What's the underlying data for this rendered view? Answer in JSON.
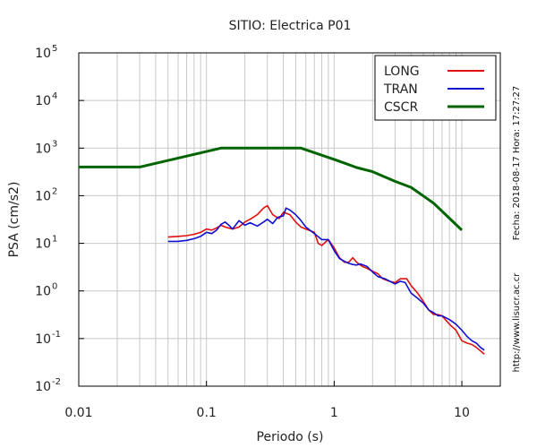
{
  "chart_data": {
    "type": "line",
    "title": "SITIO: Electrica P01",
    "xlabel": "Periodo (s)",
    "ylabel": "PSA (cm/s2)",
    "x_scale": "log",
    "y_scale": "log",
    "xlim": [
      0.01,
      20
    ],
    "ylim": [
      0.01,
      100000
    ],
    "grid": true,
    "legend_position": "top-right",
    "x_ticks": [
      {
        "value": 0.01,
        "label": "0.01"
      },
      {
        "value": 0.1,
        "label": "0.1"
      },
      {
        "value": 1,
        "label": "1"
      },
      {
        "value": 10,
        "label": "10"
      }
    ],
    "y_ticks": [
      {
        "value": 0.01,
        "base": "10",
        "exp": "-2"
      },
      {
        "value": 0.1,
        "base": "10",
        "exp": "-1"
      },
      {
        "value": 1,
        "base": "10",
        "exp": "0"
      },
      {
        "value": 10,
        "base": "10",
        "exp": "1"
      },
      {
        "value": 100,
        "base": "10",
        "exp": "2"
      },
      {
        "value": 1000,
        "base": "10",
        "exp": "3"
      },
      {
        "value": 10000,
        "base": "10",
        "exp": "4"
      },
      {
        "value": 100000,
        "base": "10",
        "exp": "5"
      }
    ],
    "series": [
      {
        "name": "LONG",
        "color": "#e01010",
        "points": [
          [
            0.05,
            13.5
          ],
          [
            0.06,
            14
          ],
          [
            0.07,
            14.5
          ],
          [
            0.08,
            15.5
          ],
          [
            0.09,
            17
          ],
          [
            0.1,
            20
          ],
          [
            0.11,
            19
          ],
          [
            0.12,
            21
          ],
          [
            0.13,
            24
          ],
          [
            0.14,
            22
          ],
          [
            0.16,
            20
          ],
          [
            0.18,
            22
          ],
          [
            0.2,
            28
          ],
          [
            0.22,
            32
          ],
          [
            0.25,
            40
          ],
          [
            0.28,
            55
          ],
          [
            0.3,
            62
          ],
          [
            0.33,
            40
          ],
          [
            0.37,
            33
          ],
          [
            0.4,
            45
          ],
          [
            0.45,
            40
          ],
          [
            0.5,
            28
          ],
          [
            0.55,
            22
          ],
          [
            0.6,
            20
          ],
          [
            0.7,
            17
          ],
          [
            0.75,
            10
          ],
          [
            0.8,
            9
          ],
          [
            0.9,
            12
          ],
          [
            1.0,
            8
          ],
          [
            1.1,
            5
          ],
          [
            1.2,
            4
          ],
          [
            1.3,
            4
          ],
          [
            1.4,
            5
          ],
          [
            1.5,
            4
          ],
          [
            1.6,
            3.5
          ],
          [
            1.7,
            3.2
          ],
          [
            1.8,
            3.0
          ],
          [
            2.0,
            2.6
          ],
          [
            2.2,
            2.3
          ],
          [
            2.4,
            1.8
          ],
          [
            2.7,
            1.6
          ],
          [
            3.0,
            1.5
          ],
          [
            3.3,
            1.8
          ],
          [
            3.7,
            1.8
          ],
          [
            4.0,
            1.3
          ],
          [
            4.5,
            0.9
          ],
          [
            5.0,
            0.6
          ],
          [
            5.5,
            0.4
          ],
          [
            6.0,
            0.32
          ],
          [
            6.5,
            0.32
          ],
          [
            7.0,
            0.3
          ],
          [
            8.0,
            0.2
          ],
          [
            9.0,
            0.15
          ],
          [
            10.0,
            0.09
          ],
          [
            11.0,
            0.08
          ],
          [
            12.0,
            0.075
          ],
          [
            13.0,
            0.065
          ],
          [
            14.0,
            0.055
          ],
          [
            15.0,
            0.047
          ]
        ]
      },
      {
        "name": "TRAN",
        "color": "#1010d0",
        "points": [
          [
            0.05,
            11
          ],
          [
            0.06,
            11
          ],
          [
            0.07,
            11.5
          ],
          [
            0.08,
            12.5
          ],
          [
            0.09,
            14
          ],
          [
            0.1,
            17
          ],
          [
            0.11,
            16
          ],
          [
            0.12,
            19
          ],
          [
            0.13,
            25
          ],
          [
            0.14,
            28
          ],
          [
            0.15,
            24
          ],
          [
            0.16,
            20
          ],
          [
            0.18,
            30
          ],
          [
            0.2,
            24
          ],
          [
            0.22,
            27
          ],
          [
            0.25,
            23
          ],
          [
            0.28,
            28
          ],
          [
            0.3,
            32
          ],
          [
            0.33,
            26
          ],
          [
            0.36,
            35
          ],
          [
            0.4,
            38
          ],
          [
            0.42,
            55
          ],
          [
            0.45,
            50
          ],
          [
            0.5,
            40
          ],
          [
            0.55,
            30
          ],
          [
            0.6,
            22
          ],
          [
            0.7,
            16
          ],
          [
            0.8,
            12
          ],
          [
            0.9,
            12
          ],
          [
            1.0,
            7
          ],
          [
            1.1,
            4.8
          ],
          [
            1.2,
            4.2
          ],
          [
            1.3,
            3.8
          ],
          [
            1.4,
            3.6
          ],
          [
            1.5,
            3.5
          ],
          [
            1.6,
            3.7
          ],
          [
            1.8,
            3.3
          ],
          [
            2.0,
            2.5
          ],
          [
            2.2,
            2.0
          ],
          [
            2.5,
            1.8
          ],
          [
            3.0,
            1.4
          ],
          [
            3.3,
            1.6
          ],
          [
            3.6,
            1.5
          ],
          [
            4.0,
            0.9
          ],
          [
            4.5,
            0.7
          ],
          [
            5.0,
            0.55
          ],
          [
            5.5,
            0.4
          ],
          [
            6.0,
            0.35
          ],
          [
            6.5,
            0.3
          ],
          [
            7.0,
            0.3
          ],
          [
            8.0,
            0.25
          ],
          [
            9.0,
            0.2
          ],
          [
            10.0,
            0.15
          ],
          [
            11.0,
            0.11
          ],
          [
            12.0,
            0.09
          ],
          [
            13.0,
            0.08
          ],
          [
            14.0,
            0.065
          ],
          [
            15.0,
            0.057
          ]
        ]
      },
      {
        "name": "CSCR",
        "color": "#006400",
        "points": [
          [
            0.01,
            400
          ],
          [
            0.03,
            400
          ],
          [
            0.13,
            1000
          ],
          [
            0.55,
            1000
          ],
          [
            1.0,
            580
          ],
          [
            1.5,
            390
          ],
          [
            2.0,
            320
          ],
          [
            3.0,
            200
          ],
          [
            4.0,
            150
          ],
          [
            6.0,
            70
          ],
          [
            10.0,
            19
          ]
        ]
      }
    ]
  },
  "side_text": {
    "timestamp": "Fecha: 2018-08-17  Hora: 17:27:27",
    "url": "http://www.lisucr.ac.cr"
  }
}
